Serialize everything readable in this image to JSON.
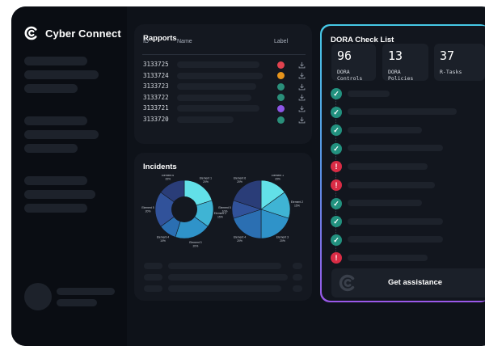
{
  "app": {
    "title": "Cyber Connect"
  },
  "rapports": {
    "title": "Rapports",
    "columns": [
      "ID",
      "Name",
      "Label"
    ],
    "rows": [
      {
        "id": "3133725",
        "label_color": "#e0424f"
      },
      {
        "id": "3133724",
        "label_color": "#e6941b"
      },
      {
        "id": "3133723",
        "label_color": "#2a8f7a"
      },
      {
        "id": "3133722",
        "label_color": "#2a8f7a"
      },
      {
        "id": "3133721",
        "label_color": "#8d56e6"
      },
      {
        "id": "3133720",
        "label_color": "#2a8f7a"
      }
    ],
    "icon": "download-icon"
  },
  "incidents": {
    "title": "Incidents",
    "chart_data": [
      {
        "type": "pie",
        "variant": "donut",
        "labels": [
          "Element 1",
          "Element 2",
          "Element 3",
          "Element 4",
          "Element 5",
          "Element 6"
        ],
        "values": [
          20,
          15,
          20,
          10,
          20,
          15
        ],
        "value_labels": [
          "20%",
          "15%",
          "20%",
          "10%",
          "20%",
          "15%"
        ]
      },
      {
        "type": "pie",
        "labels": [
          "Element 1",
          "Element 2",
          "Element 3",
          "Element 4",
          "Element 5",
          "Element 6"
        ],
        "values": [
          15,
          15,
          20,
          20,
          10,
          20
        ],
        "value_labels": [
          "15%",
          "15%",
          "20%",
          "20%",
          "10%",
          "20%"
        ]
      }
    ],
    "slice_colors": [
      "#62e0e8",
      "#3fb4d4",
      "#2f93c9",
      "#2b6fb2",
      "#31529a",
      "#2a3d78"
    ]
  },
  "dora": {
    "title": "DORA Check List",
    "stats": [
      {
        "value": "96",
        "label": "DORA Controls"
      },
      {
        "value": "13",
        "label": "DORA Policies"
      },
      {
        "value": "37",
        "label": "R-Tasks"
      }
    ],
    "items": [
      {
        "status": "ok"
      },
      {
        "status": "ok"
      },
      {
        "status": "ok"
      },
      {
        "status": "ok"
      },
      {
        "status": "alert"
      },
      {
        "status": "alert"
      },
      {
        "status": "ok"
      },
      {
        "status": "ok"
      },
      {
        "status": "ok"
      },
      {
        "status": "alert"
      }
    ],
    "status_colors": {
      "ok": "#22917f",
      "alert": "#d92c45"
    },
    "cta_label": "Get assistance"
  }
}
